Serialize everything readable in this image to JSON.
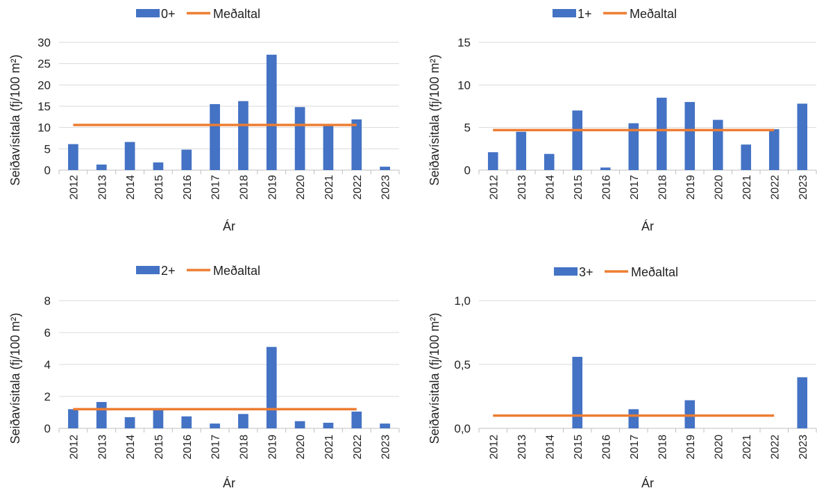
{
  "colors": {
    "bar": "#4472C4",
    "mean": "#ED7D31",
    "grid": "#D9D9D9",
    "axis": "#BFBFBF"
  },
  "chart_data": [
    {
      "type": "bar",
      "categories": [
        "2012",
        "2013",
        "2014",
        "2015",
        "2016",
        "2017",
        "2018",
        "2019",
        "2020",
        "2021",
        "2022",
        "2023"
      ],
      "series": [
        {
          "name": "0+",
          "kind": "bar",
          "values": [
            6.1,
            1.3,
            6.6,
            1.8,
            4.8,
            15.5,
            16.2,
            27.1,
            14.8,
            10.5,
            11.9,
            0.8
          ]
        },
        {
          "name": "Meðaltal",
          "kind": "line",
          "value": 10.6,
          "span": [
            "2012",
            "2022"
          ]
        }
      ],
      "ylim": [
        0,
        30
      ],
      "yticks": [
        "0",
        "5",
        "10",
        "15",
        "20",
        "25",
        "30"
      ],
      "ytick_values": [
        0,
        5,
        10,
        15,
        20,
        25,
        30
      ],
      "ylabel": "Seiðavísitala (fj/100 m²)",
      "xlabel": "Ár",
      "legend": "top",
      "grid": true
    },
    {
      "type": "bar",
      "categories": [
        "2012",
        "2013",
        "2014",
        "2015",
        "2016",
        "2017",
        "2018",
        "2019",
        "2020",
        "2021",
        "2022",
        "2023"
      ],
      "series": [
        {
          "name": "1+",
          "kind": "bar",
          "values": [
            2.1,
            4.5,
            1.9,
            7.0,
            0.3,
            5.5,
            8.5,
            8.0,
            5.9,
            3.0,
            4.8,
            7.8
          ]
        },
        {
          "name": "Meðaltal",
          "kind": "line",
          "value": 4.7,
          "span": [
            "2012",
            "2022"
          ]
        }
      ],
      "ylim": [
        0,
        15
      ],
      "yticks": [
        "0",
        "5",
        "10",
        "15"
      ],
      "ytick_values": [
        0,
        5,
        10,
        15
      ],
      "ylabel": "Seiðavísitala (fj/100 m²)",
      "xlabel": "Ár",
      "legend": "top",
      "grid": true
    },
    {
      "type": "bar",
      "categories": [
        "2012",
        "2013",
        "2014",
        "2015",
        "2016",
        "2017",
        "2018",
        "2019",
        "2020",
        "2021",
        "2022",
        "2023"
      ],
      "series": [
        {
          "name": "2+",
          "kind": "bar",
          "values": [
            1.2,
            1.65,
            0.7,
            1.2,
            0.75,
            0.3,
            0.9,
            5.1,
            0.45,
            0.35,
            1.05,
            0.3
          ]
        },
        {
          "name": "Meðaltal",
          "kind": "line",
          "value": 1.2,
          "span": [
            "2012",
            "2022"
          ]
        }
      ],
      "ylim": [
        0,
        8
      ],
      "yticks": [
        "0",
        "2",
        "4",
        "6",
        "8"
      ],
      "ytick_values": [
        0,
        2,
        4,
        6,
        8
      ],
      "ylabel": "Seiðavísitala (fj/100 m²)",
      "xlabel": "Ár",
      "legend": "top",
      "grid": true
    },
    {
      "type": "bar",
      "categories": [
        "2012",
        "2013",
        "2014",
        "2015",
        "2016",
        "2017",
        "2018",
        "2019",
        "2020",
        "2021",
        "2022",
        "2023"
      ],
      "series": [
        {
          "name": "3+",
          "kind": "bar",
          "values": [
            0,
            0,
            0,
            0.56,
            0,
            0.15,
            0,
            0.22,
            0,
            0,
            0,
            0.4
          ]
        },
        {
          "name": "Meðaltal",
          "kind": "line",
          "value": 0.1,
          "span": [
            "2012",
            "2022"
          ]
        }
      ],
      "ylim": [
        0,
        1
      ],
      "yticks": [
        "0,0",
        "0,5",
        "1,0"
      ],
      "ytick_values": [
        0,
        0.5,
        1
      ],
      "ylabel": "Seiðavísitala (fj/100 m²)",
      "xlabel": "Ár",
      "legend": "top",
      "grid": true
    }
  ]
}
